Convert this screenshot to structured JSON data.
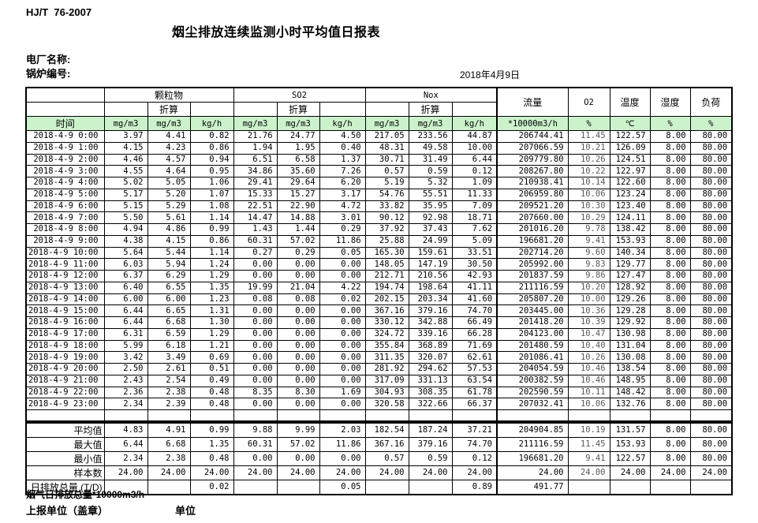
{
  "page": {
    "doc_code": "HJ/T  76-2007",
    "title": "烟尘排放连续监测小时平均值日报表",
    "plant_name_label": "电厂名称:",
    "boiler_no_label": "锅炉编号:",
    "date": "2018年4月9日",
    "footnote": "烟气日排放总量*10000m3/h",
    "report_unit_label": "上报单位（盖章）",
    "unit_label": "单位"
  },
  "colors": {
    "header_green": "#ccf2cc",
    "o2_text": "#595959"
  },
  "table": {
    "header": {
      "time": "时间",
      "pm_group": "颗粒物",
      "so2_group": "SO2",
      "nox_group": "Nox",
      "converted": "折算",
      "flow": "流量",
      "o2": "O2",
      "temp": "温度",
      "humidity": "湿度",
      "load": "负荷",
      "unit_mg": "mg/m3",
      "unit_kgh": "kg/h",
      "unit_flow": "*10000m3/h",
      "unit_pct": "%",
      "unit_c": "℃"
    },
    "rows": [
      [
        "2018-4-9 0:00",
        "3.97",
        "4.41",
        "0.82",
        "21.76",
        "24.77",
        "4.50",
        "217.05",
        "233.56",
        "44.87",
        "206744.41",
        "11.45",
        "122.57",
        "8.00",
        "80.00"
      ],
      [
        "2018-4-9 1:00",
        "4.15",
        "4.23",
        "0.86",
        "1.94",
        "1.95",
        "0.40",
        "48.31",
        "49.58",
        "10.00",
        "207066.59",
        "10.21",
        "126.09",
        "8.00",
        "80.00"
      ],
      [
        "2018-4-9 2:00",
        "4.46",
        "4.57",
        "0.94",
        "6.51",
        "6.58",
        "1.37",
        "30.71",
        "31.49",
        "6.44",
        "209779.80",
        "10.26",
        "124.51",
        "8.00",
        "80.00"
      ],
      [
        "2018-4-9 3:00",
        "4.55",
        "4.64",
        "0.95",
        "34.86",
        "35.60",
        "7.26",
        "0.57",
        "0.59",
        "0.12",
        "208267.80",
        "10.22",
        "122.97",
        "8.00",
        "80.00"
      ],
      [
        "2018-4-9 4:00",
        "5.02",
        "5.05",
        "1.06",
        "29.41",
        "29.64",
        "6.20",
        "5.19",
        "5.32",
        "1.09",
        "210938.41",
        "10.14",
        "122.60",
        "8.00",
        "80.00"
      ],
      [
        "2018-4-9 5:00",
        "5.17",
        "5.20",
        "1.07",
        "15.33",
        "15.27",
        "3.17",
        "54.76",
        "55.51",
        "11.33",
        "206959.80",
        "10.06",
        "123.24",
        "8.00",
        "80.00"
      ],
      [
        "2018-4-9 6:00",
        "5.15",
        "5.29",
        "1.08",
        "22.51",
        "22.90",
        "4.72",
        "33.82",
        "35.95",
        "7.09",
        "209521.20",
        "10.30",
        "123.40",
        "8.00",
        "80.00"
      ],
      [
        "2018-4-9 7:00",
        "5.50",
        "5.61",
        "1.14",
        "14.47",
        "14.88",
        "3.01",
        "90.12",
        "92.98",
        "18.71",
        "207660.00",
        "10.29",
        "124.11",
        "8.00",
        "80.00"
      ],
      [
        "2018-4-9 8:00",
        "4.94",
        "4.86",
        "0.99",
        "1.43",
        "1.44",
        "0.29",
        "37.92",
        "37.43",
        "7.62",
        "201016.20",
        "9.78",
        "138.42",
        "8.00",
        "80.00"
      ],
      [
        "2018-4-9 9:00",
        "4.38",
        "4.15",
        "0.86",
        "60.31",
        "57.02",
        "11.86",
        "25.88",
        "24.99",
        "5.09",
        "196681.20",
        "9.41",
        "153.93",
        "8.00",
        "80.00"
      ],
      [
        "2018-4-9 10:00",
        "5.64",
        "5.44",
        "1.14",
        "0.27",
        "0.29",
        "0.05",
        "165.30",
        "159.61",
        "33.51",
        "202714.20",
        "9.60",
        "140.34",
        "8.00",
        "80.00"
      ],
      [
        "2018-4-9 11:00",
        "6.03",
        "5.94",
        "1.24",
        "0.00",
        "0.00",
        "0.00",
        "148.05",
        "147.19",
        "30.50",
        "205992.00",
        "9.83",
        "129.77",
        "8.00",
        "80.00"
      ],
      [
        "2018-4-9 12:00",
        "6.37",
        "6.29",
        "1.29",
        "0.00",
        "0.00",
        "0.00",
        "212.71",
        "210.56",
        "42.93",
        "201837.59",
        "9.86",
        "127.47",
        "8.00",
        "80.00"
      ],
      [
        "2018-4-9 13:00",
        "6.40",
        "6.55",
        "1.35",
        "19.99",
        "21.04",
        "4.22",
        "194.74",
        "198.64",
        "41.11",
        "211116.59",
        "10.20",
        "128.92",
        "8.00",
        "80.00"
      ],
      [
        "2018-4-9 14:00",
        "6.00",
        "6.00",
        "1.23",
        "0.08",
        "0.08",
        "0.02",
        "202.15",
        "203.34",
        "41.60",
        "205807.20",
        "10.00",
        "129.26",
        "8.00",
        "80.00"
      ],
      [
        "2018-4-9 15:00",
        "6.44",
        "6.65",
        "1.31",
        "0.00",
        "0.00",
        "0.00",
        "367.16",
        "379.16",
        "74.70",
        "203445.00",
        "10.36",
        "129.28",
        "8.00",
        "80.00"
      ],
      [
        "2018-4-9 16:00",
        "6.44",
        "6.68",
        "1.30",
        "0.00",
        "0.00",
        "0.00",
        "330.12",
        "342.88",
        "66.49",
        "201418.20",
        "10.39",
        "129.92",
        "8.00",
        "80.00"
      ],
      [
        "2018-4-9 17:00",
        "6.31",
        "6.59",
        "1.29",
        "0.00",
        "0.00",
        "0.00",
        "324.72",
        "339.16",
        "66.28",
        "204123.00",
        "10.47",
        "130.98",
        "8.00",
        "80.00"
      ],
      [
        "2018-4-9 18:00",
        "5.99",
        "6.18",
        "1.21",
        "0.00",
        "0.00",
        "0.00",
        "355.84",
        "368.89",
        "71.69",
        "201480.59",
        "10.40",
        "131.04",
        "8.00",
        "80.00"
      ],
      [
        "2018-4-9 19:00",
        "3.42",
        "3.49",
        "0.69",
        "0.00",
        "0.00",
        "0.00",
        "311.35",
        "320.07",
        "62.61",
        "201086.41",
        "10.26",
        "130.08",
        "8.00",
        "80.00"
      ],
      [
        "2018-4-9 20:00",
        "2.50",
        "2.61",
        "0.51",
        "0.00",
        "0.00",
        "0.00",
        "281.92",
        "294.62",
        "57.53",
        "204054.59",
        "10.46",
        "138.54",
        "8.00",
        "80.00"
      ],
      [
        "2018-4-9 21:00",
        "2.43",
        "2.54",
        "0.49",
        "0.00",
        "0.00",
        "0.00",
        "317.09",
        "331.13",
        "63.54",
        "200382.59",
        "10.46",
        "148.95",
        "8.00",
        "80.00"
      ],
      [
        "2018-4-9 22:00",
        "2.36",
        "2.38",
        "0.48",
        "8.35",
        "8.30",
        "1.69",
        "304.93",
        "308.35",
        "61.78",
        "202590.59",
        "10.11",
        "148.42",
        "8.00",
        "80.00"
      ],
      [
        "2018-4-9 23:00",
        "2.34",
        "2.39",
        "0.48",
        "0.00",
        "0.00",
        "0.00",
        "320.58",
        "322.66",
        "66.37",
        "207032.41",
        "10.06",
        "132.76",
        "8.00",
        "80.00"
      ]
    ]
  },
  "summary": {
    "rows": [
      {
        "label": "平均值",
        "values": [
          "4.83",
          "4.91",
          "0.99",
          "9.88",
          "9.99",
          "2.03",
          "182.54",
          "187.24",
          "37.21",
          "204904.85",
          "10.19",
          "131.57",
          "8.00",
          "80.00"
        ]
      },
      {
        "label": "最大值",
        "values": [
          "6.44",
          "6.68",
          "1.35",
          "60.31",
          "57.02",
          "11.86",
          "367.16",
          "379.16",
          "74.70",
          "211116.59",
          "11.45",
          "153.93",
          "8.00",
          "80.00"
        ]
      },
      {
        "label": "最小值",
        "values": [
          "2.34",
          "2.38",
          "0.48",
          "0.00",
          "0.00",
          "0.00",
          "0.57",
          "0.59",
          "0.12",
          "196681.20",
          "9.41",
          "122.57",
          "8.00",
          "80.00"
        ]
      },
      {
        "label": "样本数",
        "values": [
          "24.00",
          "24.00",
          "24.00",
          "24.00",
          "24.00",
          "24.00",
          "24.00",
          "24.00",
          "24.00",
          "24.00",
          "24.00",
          "24.00",
          "24.00",
          "24.00"
        ]
      },
      {
        "label": "日排放总量 (T/D)",
        "values": [
          "",
          "",
          "0.02",
          "",
          "",
          "0.05",
          "",
          "",
          "0.89",
          "491.77",
          "",
          "",
          "",
          ""
        ]
      }
    ]
  }
}
